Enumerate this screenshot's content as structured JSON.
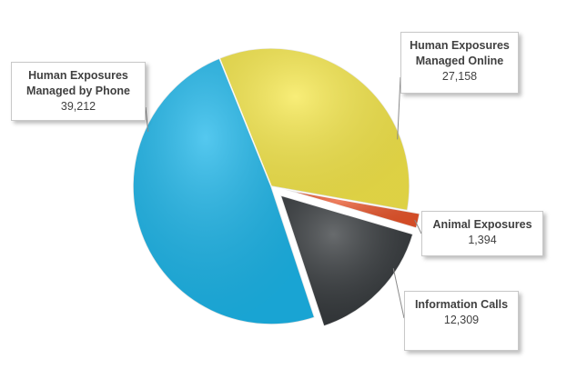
{
  "chart_data": {
    "type": "pie",
    "categories": [
      "Human Exposures Managed Online",
      "Animal Exposures",
      "Information Calls",
      "Human Exposures Managed by Phone"
    ],
    "values": [
      27158,
      1394,
      12309,
      39212
    ],
    "value_labels": [
      "27,158",
      "1,394",
      "12,309",
      "39,212"
    ],
    "colors": [
      "#f6e84b",
      "#e9552b",
      "#363a3d",
      "#1cb6ea"
    ]
  }
}
